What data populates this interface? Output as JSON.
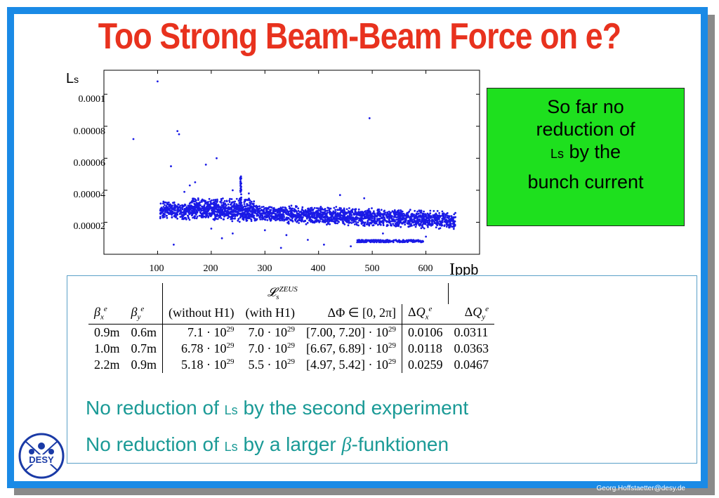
{
  "title": "Too Strong Beam-Beam Force on e?",
  "plot": {
    "ylabel_main": "L",
    "ylabel_sub": "s",
    "xlabel_main": "I",
    "xlabel_sub": "ppb",
    "y_ticks": [
      "0.0001",
      "0.00008",
      "0.00006",
      "0.00004",
      "0.00002"
    ],
    "x_ticks": [
      "100",
      "200",
      "300",
      "400",
      "500",
      "600"
    ]
  },
  "callout": {
    "line1": "So far no",
    "line2": "reduction of",
    "line3_sym": "Ls",
    "line3_rest": "by the",
    "line4": "bunch current"
  },
  "table": {
    "header_top": "L_s^ZEUS",
    "col_headers": [
      "βxe",
      "βye",
      "(without H1)",
      "(with H1)",
      "ΔΦ ∈ [0, 2π]",
      "ΔQxe",
      "ΔQye"
    ],
    "rows": [
      [
        "0.9m",
        "0.6m",
        "7.1",
        "7.0",
        "[7.00, 7.20]",
        "0.0106",
        "0.0311"
      ],
      [
        "1.0m",
        "0.7m",
        "6.78",
        "7.0",
        "[6.67, 6.89]",
        "0.0118",
        "0.0363"
      ],
      [
        "2.2m",
        "0.9m",
        "5.18",
        "5.5",
        "[4.97, 5.42]",
        "0.0259",
        "0.0467"
      ]
    ],
    "exp_base": "· 10",
    "exp": "29"
  },
  "statements": {
    "s1_pre": "No reduction of",
    "s1_sym": "Ls",
    "s1_post": "by the second experiment",
    "s2_pre": "No reduction of",
    "s2_sym": "Ls",
    "s2_post": "by a larger",
    "s2_beta": "β",
    "s2_tail": "-funktionen"
  },
  "logo_text": "DESY",
  "footer": "Georg.Hoffstaetter@desy.de",
  "colors": {
    "title": "#e8321e",
    "frame": "#1a8ae6",
    "callout_bg": "#1ee01e",
    "statement": "#1a9a96",
    "points": "#1a1ae6"
  }
}
